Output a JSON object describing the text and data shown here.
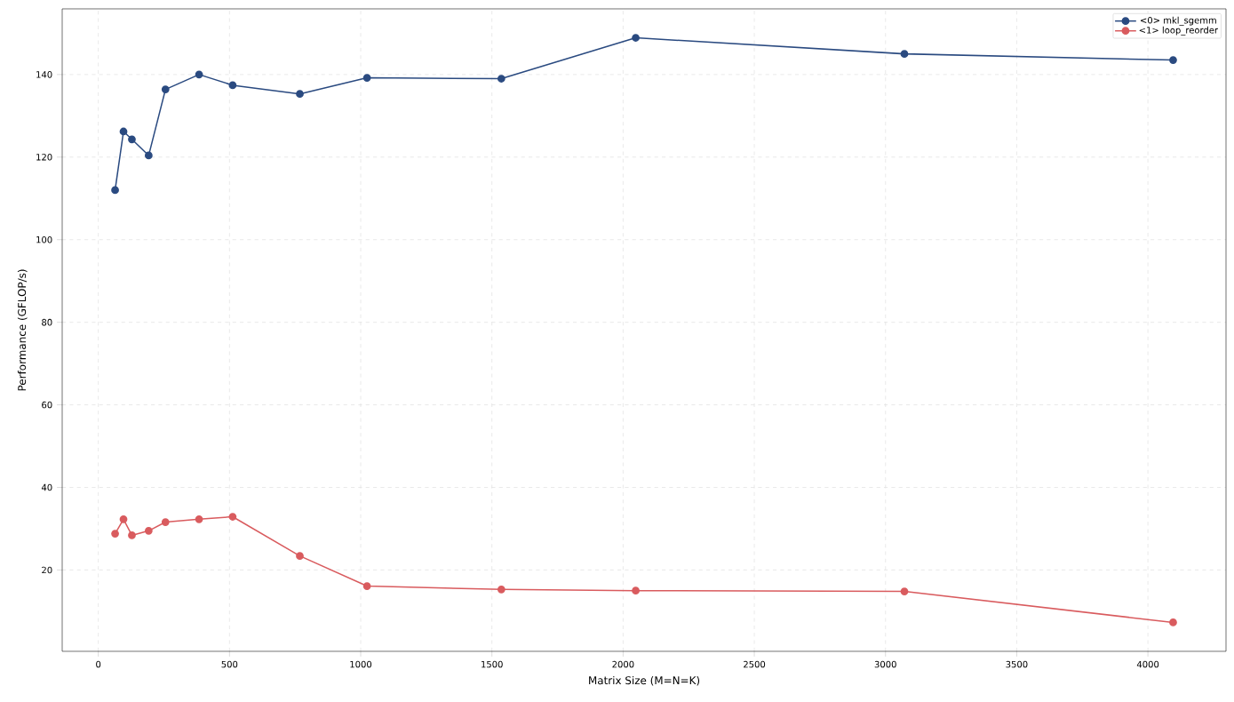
{
  "chart_data": {
    "type": "line",
    "xlabel": "Matrix Size (M=N=K)",
    "ylabel": "Performance (GFLOP/s)",
    "x": [
      64,
      96,
      128,
      192,
      256,
      384,
      512,
      768,
      1024,
      1536,
      2048,
      3072,
      4096
    ],
    "series": [
      {
        "name": "<0> mkl_sgemm",
        "color": "#2a4a80",
        "values": [
          112.0,
          126.2,
          124.3,
          120.4,
          136.4,
          140.0,
          137.4,
          135.3,
          139.2,
          139.0,
          148.9,
          145.0,
          143.5
        ]
      },
      {
        "name": "<1> loop_reorder",
        "color": "#d95b5e",
        "values": [
          28.8,
          32.3,
          28.4,
          29.5,
          31.6,
          32.3,
          32.9,
          23.4,
          16.1,
          15.3,
          15.0,
          14.8,
          7.3
        ]
      }
    ],
    "xlim": [
      -137.6,
      4297.6
    ],
    "ylim": [
      0.3,
      155.9
    ],
    "xticks": [
      0,
      500,
      1000,
      1500,
      2000,
      2500,
      3000,
      3500,
      4000
    ],
    "yticks": [
      20,
      40,
      60,
      80,
      100,
      120,
      140
    ],
    "grid": true,
    "legend": "top right",
    "marker": "circle",
    "line_style": "solid"
  }
}
